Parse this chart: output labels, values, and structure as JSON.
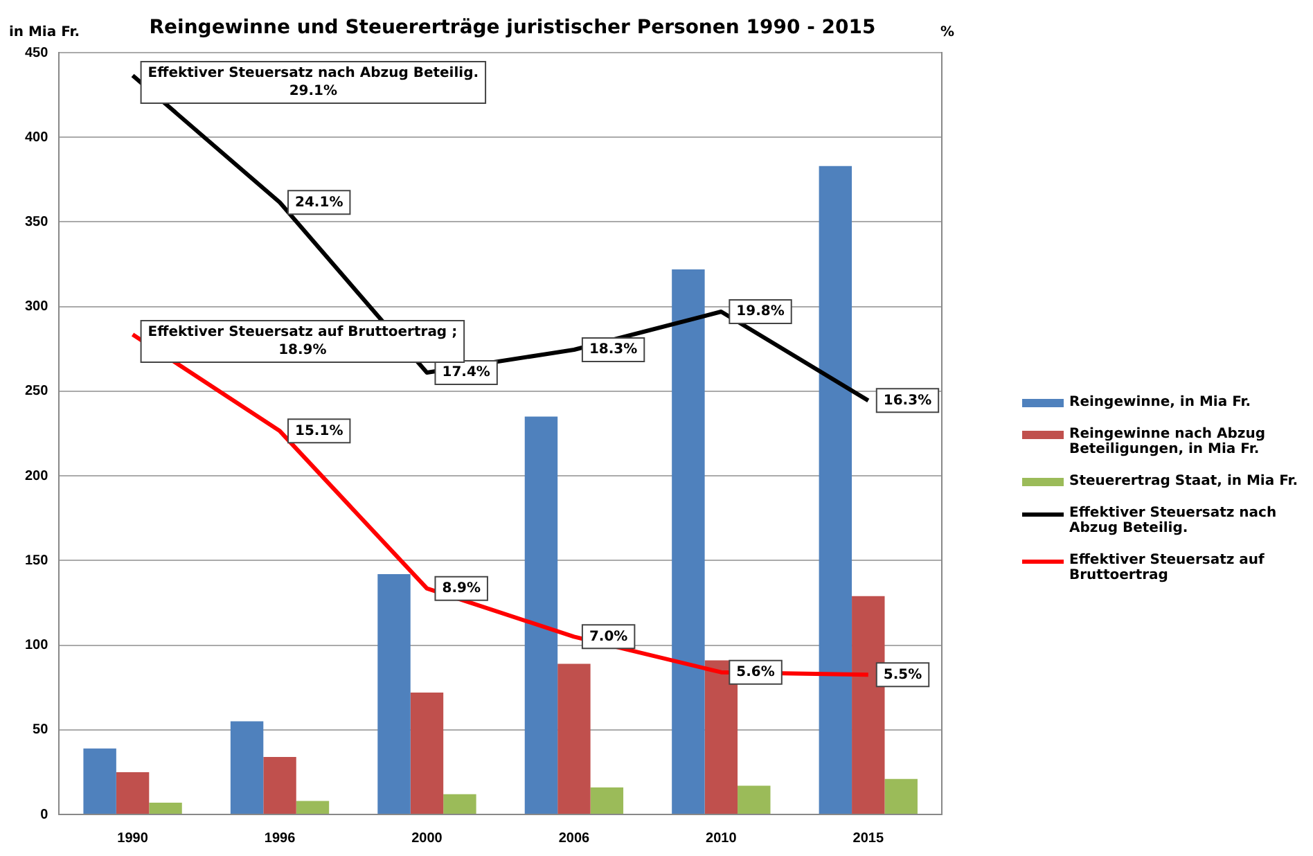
{
  "chart_data": {
    "type": "bar",
    "title": "Reingewinne und Steuererträge juristischer Personen 1990 - 2015",
    "ylabel": "in Mia Fr.",
    "y2label": "%",
    "categories": [
      "1990",
      "1996",
      "2000",
      "2006",
      "2010",
      "2015"
    ],
    "series": [
      {
        "name": "Reingewinne, in Mia Fr.",
        "color": "#4f81bd",
        "values": [
          39,
          55,
          142,
          235,
          322,
          383
        ]
      },
      {
        "name": "Reingewinne nach Abzug Beteiligungen, in Mia Fr.",
        "color": "#c0504d",
        "values": [
          25,
          34,
          72,
          89,
          91,
          129
        ]
      },
      {
        "name": "Steuerertrag Staat, in Mia Fr.",
        "color": "#9bbb59",
        "values": [
          7,
          8,
          12,
          16,
          17,
          21
        ]
      },
      {
        "name": "Effektiver Steuersatz nach Abzug Beteilig.",
        "type": "line",
        "axis": "y2",
        "color": "#000000",
        "values": [
          29.1,
          24.1,
          17.4,
          18.3,
          19.8,
          16.3
        ],
        "value_labels": [
          "Effektiver Steuersatz nach Abzug Beteilig. 29.1%",
          "24.1%",
          "17.4%",
          "18.3%",
          "19.8%",
          "16.3%"
        ]
      },
      {
        "name": "Effektiver Steuersatz auf Bruttoertrag",
        "type": "line",
        "axis": "y2",
        "color": "#ff0000",
        "values": [
          18.9,
          15.1,
          8.9,
          7.0,
          5.6,
          5.5
        ],
        "value_labels": [
          "Effektiver Steuersatz auf Bruttoertrag ; 18.9%",
          "15.1%",
          "8.9%",
          "7.0%",
          "5.6%",
          "5.5%"
        ]
      }
    ],
    "ylim": [
      0,
      450
    ],
    "yticks": [
      0,
      50,
      100,
      150,
      200,
      250,
      300,
      350,
      400,
      450
    ],
    "grid": "y",
    "legend": "right",
    "marker": "none",
    "line_style": "solid"
  }
}
